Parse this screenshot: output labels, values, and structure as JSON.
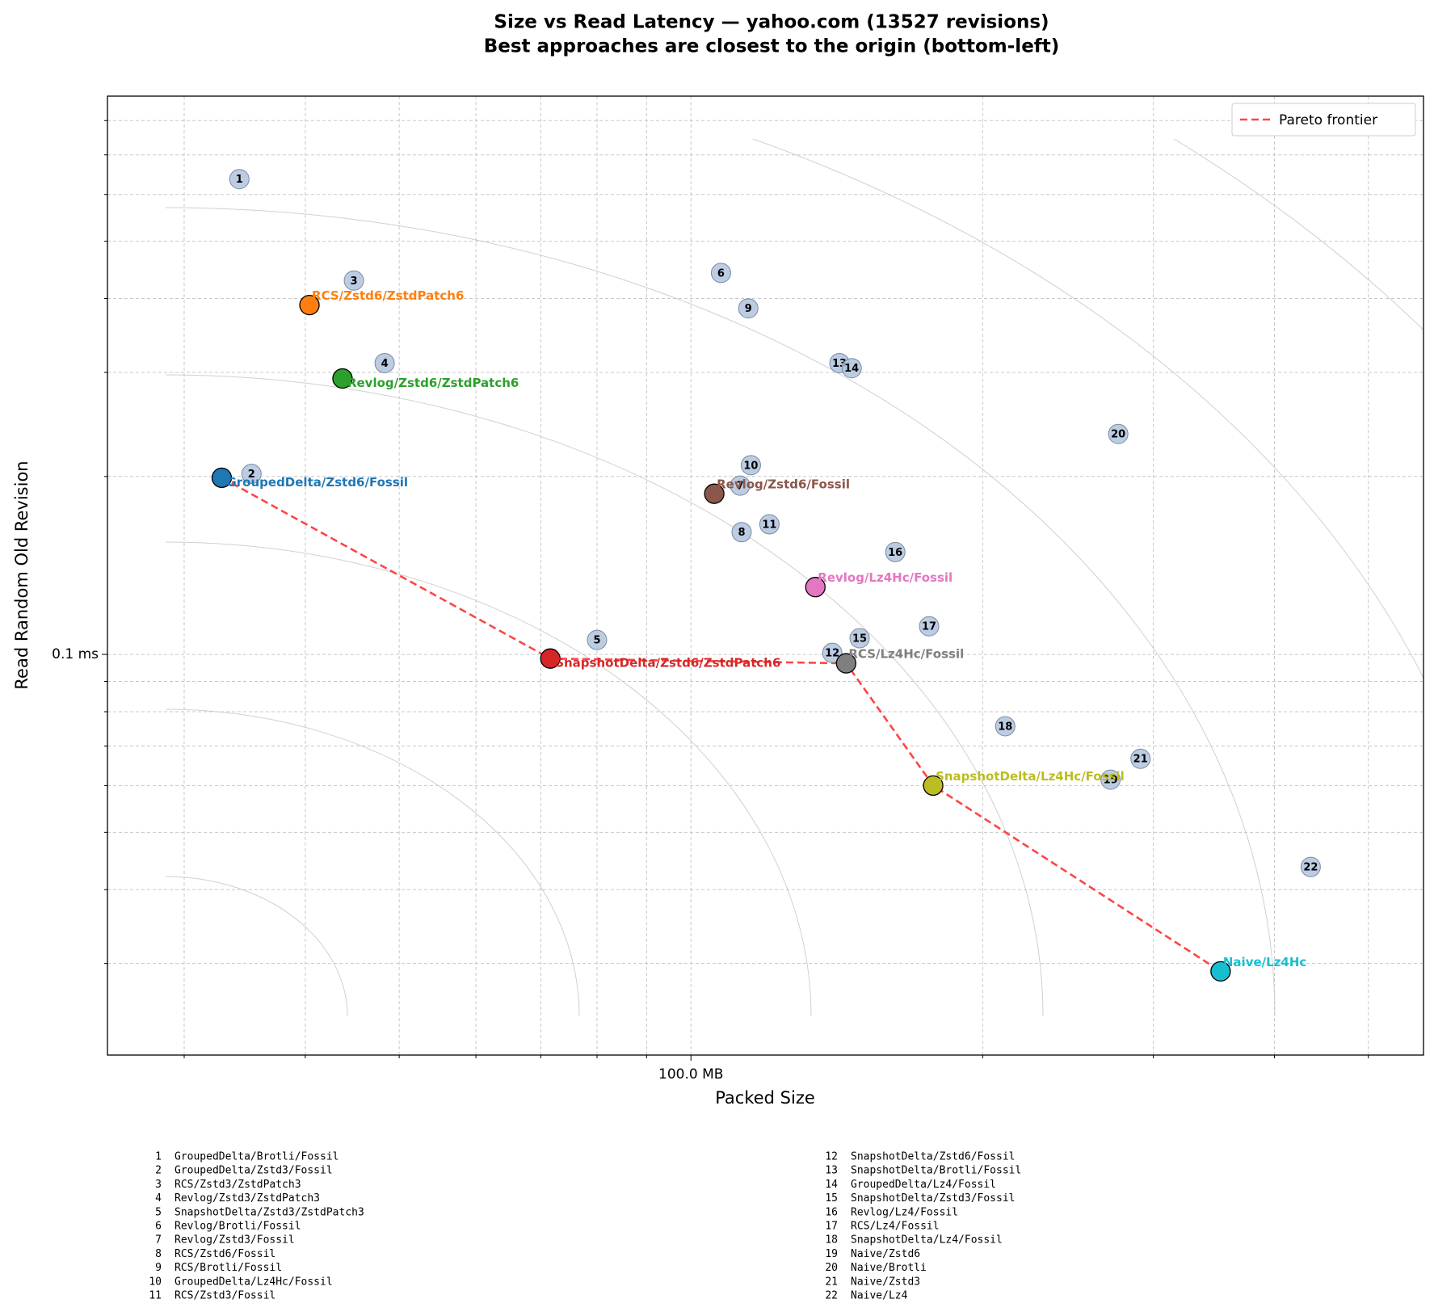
{
  "chart_data": {
    "type": "scatter",
    "title": "Size vs Read Latency — yahoo.com (13527 revisions)",
    "subtitle": "Best approaches are closest to the origin (bottom-left)",
    "x_label": "Packed Size",
    "y_label": "Read Random Old Revision",
    "log_x": true,
    "log_y": true,
    "grid": true,
    "legend": "upper right",
    "xlim": [
      25,
      570
    ],
    "ylim": [
      0.021,
      0.88
    ],
    "xticks": [
      {
        "value": 100,
        "label": "100.0 MB"
      }
    ],
    "yticks": [
      {
        "value": 0.1,
        "label": "0.1 ms"
      }
    ],
    "x_minor_ticks": [
      30,
      40,
      50,
      60,
      70,
      80,
      90,
      200,
      300,
      400,
      500
    ],
    "y_minor_ticks": [
      0.03,
      0.04,
      0.05,
      0.06,
      0.07,
      0.08,
      0.09,
      0.2,
      0.3,
      0.4,
      0.5,
      0.6,
      0.7,
      0.8
    ],
    "highlighted": [
      {
        "name": "GroupedDelta/Zstd6/Fossil",
        "color": "#1f77b4",
        "x": 32.8,
        "y": 0.199
      },
      {
        "name": "RCS/Zstd6/ZstdPatch6",
        "color": "#ff7f0e",
        "x": 40.4,
        "y": 0.39
      },
      {
        "name": "Revlog/Zstd6/ZstdPatch6",
        "color": "#2ca02c",
        "x": 43.7,
        "y": 0.293
      },
      {
        "name": "SnapshotDelta/Zstd6/ZstdPatch6",
        "color": "#d62728",
        "x": 71.6,
        "y": 0.0984
      },
      {
        "name": "Revlog/Zstd6/Fossil",
        "color": "#8c564b",
        "x": 105.7,
        "y": 0.187
      },
      {
        "name": "Revlog/Lz4Hc/Fossil",
        "color": "#e377c2",
        "x": 134.4,
        "y": 0.13
      },
      {
        "name": "RCS/Lz4Hc/Fossil",
        "color": "#7f7f7f",
        "x": 144.6,
        "y": 0.0966
      },
      {
        "name": "SnapshotDelta/Lz4Hc/Fossil",
        "color": "#bcbd22",
        "x": 177.8,
        "y": 0.06
      },
      {
        "name": "Naive/Lz4Hc",
        "color": "#17becf",
        "x": 352,
        "y": 0.0291
      }
    ],
    "others_color": "#b0c4de",
    "others": [
      {
        "id": 1,
        "name": "GroupedDelta/Brotli/Fossil",
        "x": 34.2,
        "y": 0.637
      },
      {
        "id": 2,
        "name": "GroupedDelta/Zstd3/Fossil",
        "x": 35.2,
        "y": 0.202
      },
      {
        "id": 3,
        "name": "RCS/Zstd3/ZstdPatch3",
        "x": 44.9,
        "y": 0.429
      },
      {
        "id": 4,
        "name": "Revlog/Zstd3/ZstdPatch3",
        "x": 48.3,
        "y": 0.311
      },
      {
        "id": 5,
        "name": "SnapshotDelta/Zstd3/ZstdPatch3",
        "x": 80.0,
        "y": 0.1058
      },
      {
        "id": 6,
        "name": "Revlog/Brotli/Fossil",
        "x": 107.4,
        "y": 0.442
      },
      {
        "id": 7,
        "name": "Revlog/Zstd3/Fossil",
        "x": 112.4,
        "y": 0.193
      },
      {
        "id": 8,
        "name": "RCS/Zstd6/Fossil",
        "x": 112.8,
        "y": 0.161
      },
      {
        "id": 9,
        "name": "RCS/Brotli/Fossil",
        "x": 114.6,
        "y": 0.385
      },
      {
        "id": 10,
        "name": "GroupedDelta/Lz4Hc/Fossil",
        "x": 115.3,
        "y": 0.209
      },
      {
        "id": 11,
        "name": "RCS/Zstd3/Fossil",
        "x": 120.5,
        "y": 0.166
      },
      {
        "id": 12,
        "name": "SnapshotDelta/Zstd6/Fossil",
        "x": 139.9,
        "y": 0.1006
      },
      {
        "id": 13,
        "name": "SnapshotDelta/Brotli/Fossil",
        "x": 142.3,
        "y": 0.311
      },
      {
        "id": 14,
        "name": "GroupedDelta/Lz4/Fossil",
        "x": 146.5,
        "y": 0.305
      },
      {
        "id": 15,
        "name": "SnapshotDelta/Zstd3/Fossil",
        "x": 149.3,
        "y": 0.1065
      },
      {
        "id": 16,
        "name": "Revlog/Lz4/Fossil",
        "x": 162.5,
        "y": 0.149
      },
      {
        "id": 17,
        "name": "RCS/Lz4/Fossil",
        "x": 176.1,
        "y": 0.1116
      },
      {
        "id": 18,
        "name": "SnapshotDelta/Lz4/Fossil",
        "x": 211,
        "y": 0.0756
      },
      {
        "id": 19,
        "name": "Naive/Zstd6",
        "x": 271,
        "y": 0.0614
      },
      {
        "id": 20,
        "name": "Naive/Brotli",
        "x": 276,
        "y": 0.236
      },
      {
        "id": 21,
        "name": "Naive/Zstd3",
        "x": 291,
        "y": 0.0666
      },
      {
        "id": 22,
        "name": "Naive/Lz4",
        "x": 436,
        "y": 0.0437
      }
    ],
    "series": [
      {
        "name": "Pareto frontier",
        "color": "#ff4444",
        "x": [
          32.8,
          71.6,
          144.6,
          177.8,
          352
        ],
        "y": [
          0.199,
          0.0984,
          0.0966,
          0.06,
          0.0291
        ]
      }
    ]
  }
}
